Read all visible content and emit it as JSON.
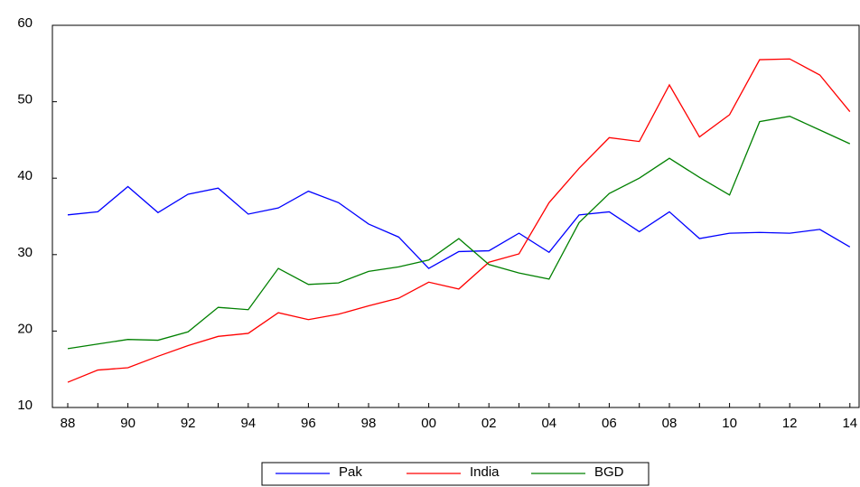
{
  "chart_data": {
    "type": "line",
    "categories": [
      "88",
      null,
      "90",
      null,
      "92",
      null,
      "94",
      null,
      "96",
      null,
      "98",
      null,
      "00",
      null,
      "02",
      null,
      "04",
      null,
      "06",
      null,
      "08",
      null,
      "10",
      null,
      "12",
      null,
      "14"
    ],
    "series": [
      {
        "name": "Pak",
        "color": "#0000ff",
        "values": [
          35.2,
          35.6,
          38.9,
          35.5,
          37.9,
          38.7,
          35.3,
          36.1,
          38.3,
          36.8,
          34.0,
          32.3,
          28.2,
          30.4,
          30.5,
          32.8,
          30.3,
          35.2,
          35.6,
          33.0,
          35.6,
          32.1,
          32.8,
          32.9,
          32.8,
          33.3,
          31.0
        ]
      },
      {
        "name": "India",
        "color": "#ff0000",
        "values": [
          13.3,
          14.9,
          15.2,
          16.7,
          18.1,
          19.3,
          19.7,
          22.4,
          21.5,
          22.2,
          23.3,
          24.3,
          26.4,
          25.5,
          29.0,
          30.1,
          36.8,
          41.3,
          45.3,
          44.8,
          52.2,
          45.4,
          48.3,
          55.5,
          55.6,
          53.5,
          48.7
        ]
      },
      {
        "name": "BGD",
        "color": "#008000",
        "values": [
          17.7,
          18.3,
          18.9,
          18.8,
          19.9,
          23.1,
          22.8,
          28.2,
          26.1,
          26.3,
          27.8,
          28.4,
          29.3,
          32.1,
          28.7,
          27.6,
          26.8,
          34.2,
          38.0,
          40.0,
          42.6,
          40.1,
          37.8,
          47.4,
          48.1,
          46.3,
          44.5
        ]
      }
    ],
    "ylim": [
      10,
      60
    ],
    "yticks": [
      10,
      20,
      30,
      40,
      50,
      60
    ],
    "legend": "bottom"
  }
}
